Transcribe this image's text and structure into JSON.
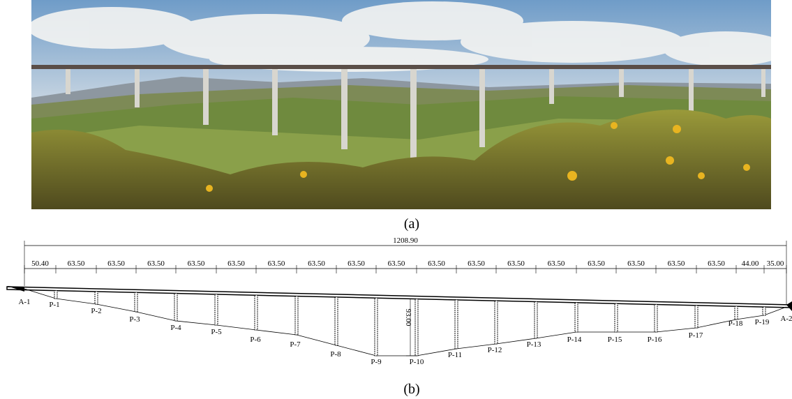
{
  "photo": {
    "caption": "(a)"
  },
  "drawing": {
    "caption": "(b)",
    "total_length": "1208.90",
    "spans": [
      "50.40",
      "63.50",
      "63.50",
      "63.50",
      "63.50",
      "63.50",
      "63.50",
      "63.50",
      "63.50",
      "63.50",
      "63.50",
      "63.50",
      "63.50",
      "63.50",
      "63.50",
      "63.50",
      "63.50",
      "63.50",
      "44.00",
      "35.00"
    ],
    "supports": [
      "A-1",
      "P-1",
      "P-2",
      "P-3",
      "P-4",
      "P-5",
      "P-6",
      "P-7",
      "P-8",
      "P-9",
      "P-10",
      "P-11",
      "P-12",
      "P-13",
      "P-14",
      "P-15",
      "P-16",
      "P-17",
      "P-18",
      "P-19",
      "A-2"
    ],
    "height": "93.00"
  }
}
